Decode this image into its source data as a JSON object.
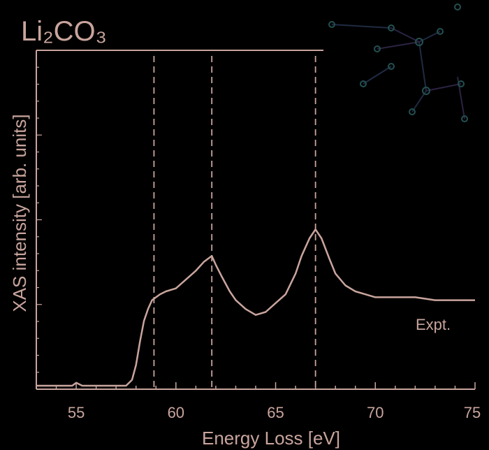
{
  "chart_data": {
    "type": "line",
    "title": "Li₂CO₃",
    "xlabel": "Energy Loss [eV]",
    "ylabel": "XAS intensity [arb. units]",
    "xlim": [
      53,
      75
    ],
    "ylim": [
      0,
      1
    ],
    "x_ticks": [
      55,
      60,
      65,
      70,
      75
    ],
    "grid": false,
    "colors": {
      "curve": "#c9a59d",
      "dashed": "#c9a59d",
      "axis": "#c9a59d"
    },
    "reference_lines_x": [
      58.9,
      61.8,
      67.0
    ],
    "series": [
      {
        "name": "",
        "label": "Expt.",
        "x": [
          53.0,
          54.0,
          54.8,
          55.0,
          55.3,
          56.0,
          57.0,
          57.5,
          57.8,
          58.0,
          58.2,
          58.4,
          58.6,
          58.8,
          59.0,
          59.2,
          59.5,
          60.0,
          60.5,
          61.0,
          61.4,
          61.8,
          62.0,
          62.3,
          62.7,
          63.0,
          63.5,
          64.0,
          64.5,
          65.0,
          65.5,
          66.0,
          66.3,
          66.7,
          67.0,
          67.3,
          67.7,
          68.0,
          68.5,
          69.0,
          69.5,
          70.0,
          70.5,
          71.0,
          71.5,
          72.0,
          73.0,
          74.0,
          75.0
        ],
        "y": [
          0.0,
          0.0,
          0.0,
          0.01,
          0.0,
          0.0,
          0.0,
          0.0,
          0.02,
          0.07,
          0.15,
          0.22,
          0.26,
          0.29,
          0.3,
          0.31,
          0.32,
          0.33,
          0.36,
          0.39,
          0.42,
          0.44,
          0.41,
          0.37,
          0.32,
          0.29,
          0.26,
          0.24,
          0.25,
          0.28,
          0.31,
          0.38,
          0.44,
          0.5,
          0.53,
          0.5,
          0.43,
          0.38,
          0.34,
          0.32,
          0.31,
          0.3,
          0.3,
          0.3,
          0.3,
          0.3,
          0.29,
          0.29,
          0.29
        ]
      }
    ]
  },
  "watermark": {
    "name": "molecular-structure-decoration"
  }
}
